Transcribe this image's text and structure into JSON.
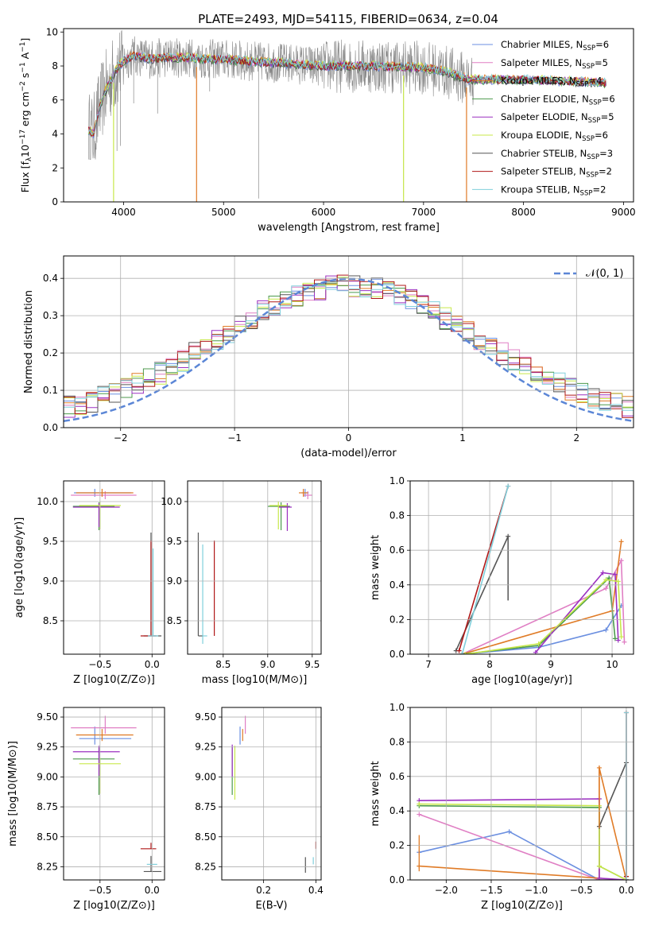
{
  "title": "PLATE=2493, MJD=54115, FIBERID=0634, z=0.04",
  "colors": {
    "chabrier_miles": "#6b8fe0",
    "salpeter_miles": "#e07fc4",
    "kroupa_miles": "#e07b26",
    "chabrier_elodie": "#4c9a4c",
    "salpeter_elodie": "#9b30c0",
    "kroupa_elodie": "#c8e84a",
    "chabrier_stelib": "#555555",
    "salpeter_stelib": "#b01818",
    "kroupa_stelib": "#80d0dc",
    "normal": "#5b86d6",
    "data": "#888888"
  },
  "chart_data": [
    {
      "type": "line",
      "panel": "spectrum",
      "xlabel": "wavelength [Angstrom, rest frame]",
      "ylabel": "Flux [f_λ 10^-17 erg cm^-2 s^-1 A^-1]",
      "xlim": [
        3400,
        9100
      ],
      "ylim": [
        0,
        10.2
      ],
      "xticks": [
        "4000",
        "5000",
        "6000",
        "7000",
        "8000",
        "9000"
      ],
      "yticks": [
        "0",
        "2",
        "4",
        "6",
        "8",
        "10"
      ],
      "legend_position": "right",
      "legend": [
        "Chabrier MILES, N_SSP=6",
        "Salpeter MILES, N_SSP=5",
        "Kroupa MILES, N_SSP=4",
        "Chabrier ELODIE, N_SSP=6",
        "Salpeter ELODIE, N_SSP=5",
        "Kroupa ELODIE, N_SSP=6",
        "Chabrier STELIB, N_SSP=3",
        "Salpeter STELIB, N_SSP=2",
        "Kroupa STELIB, N_SSP=2"
      ],
      "legend_base": [
        "Chabrier MILES, N",
        "Salpeter MILES, N",
        "Kroupa MILES, N",
        "Chabrier ELODIE, N",
        "Salpeter ELODIE, N",
        "Kroupa ELODIE, N",
        "Chabrier STELIB, N",
        "Salpeter STELIB, N",
        "Kroupa STELIB, N"
      ],
      "legend_sub": "SSP",
      "legend_n": [
        "=6",
        "=5",
        "=4",
        "=6",
        "=5",
        "=6",
        "=3",
        "=2",
        "=2"
      ],
      "continuum": {
        "x": [
          3650,
          3700,
          3750,
          3800,
          3850,
          3900,
          3950,
          4000,
          4100,
          4200,
          4300,
          4400,
          4500,
          4600,
          4800,
          5000,
          5200,
          5500,
          6000,
          6500,
          7000,
          7200,
          7400,
          7450,
          7500,
          8000,
          8500,
          8800
        ],
        "y": [
          4.2,
          4.0,
          5.3,
          6.3,
          6.9,
          7.5,
          8.0,
          8.3,
          8.6,
          8.5,
          8.4,
          8.5,
          8.5,
          8.5,
          8.4,
          8.4,
          8.3,
          8.2,
          8.0,
          8.0,
          7.9,
          7.7,
          7.3,
          7.2,
          7.2,
          7.2,
          7.1,
          7.0
        ]
      }
    },
    {
      "type": "bar",
      "panel": "residual_histograms",
      "xlabel": "(data-model)/error",
      "ylabel": "Normed distribution",
      "xlim": [
        -2.5,
        2.5
      ],
      "ylim": [
        0,
        0.46
      ],
      "xticks": [
        "−2",
        "−1",
        "0",
        "1",
        "2"
      ],
      "yticks": [
        "0.0",
        "0.1",
        "0.2",
        "0.3",
        "0.4"
      ],
      "normal_label": "𝒩(0, 1)",
      "legend_position": "top-right",
      "bin_width": 0.1
    },
    {
      "type": "scatter",
      "panel": "age_vs_Z",
      "xlabel": "Z [log10(Z/Z⊙)]",
      "ylabel": "age [log10(age/yr)]",
      "xlim": [
        -0.85,
        0.12
      ],
      "ylim": [
        8.08,
        10.26
      ],
      "xticks": [
        "−0.5",
        "0.0"
      ],
      "yticks": [
        "8.5",
        "9.0",
        "9.5",
        "10.0"
      ]
    },
    {
      "type": "scatter",
      "panel": "age_vs_mass",
      "xlabel": "mass [log10(M/M⊙)]",
      "ylabel": "",
      "xlim": [
        8.1,
        9.6
      ],
      "ylim": [
        8.08,
        10.26
      ],
      "xticks": [
        "8.5",
        "9.0",
        "9.5"
      ],
      "yticks": [
        "8.5",
        "9.0",
        "9.5",
        "10.0"
      ]
    },
    {
      "type": "line",
      "panel": "massweight_vs_age",
      "xlabel": "age [log10(age/yr)]",
      "ylabel": "mass weight",
      "xlim": [
        6.7,
        10.35
      ],
      "ylim": [
        0,
        1.0
      ],
      "xticks": [
        "7",
        "8",
        "9",
        "10"
      ],
      "yticks": [
        "0.0",
        "0.2",
        "0.4",
        "0.6",
        "0.8",
        "1.0"
      ]
    },
    {
      "type": "scatter",
      "panel": "mass_vs_Z",
      "xlabel": "Z [log10(Z/Z⊙)]",
      "ylabel": "mass [log10(M/M⊙)]",
      "xlim": [
        -0.85,
        0.12
      ],
      "ylim": [
        8.14,
        9.58
      ],
      "xticks": [
        "−0.5",
        "0.0"
      ],
      "yticks": [
        "8.25",
        "8.50",
        "8.75",
        "9.00",
        "9.25",
        "9.50"
      ]
    },
    {
      "type": "scatter",
      "panel": "mass_vs_ebv",
      "xlabel": "E(B-V)",
      "ylabel": "",
      "xlim": [
        0.04,
        0.42
      ],
      "ylim": [
        8.14,
        9.58
      ],
      "xticks": [
        "0.2",
        "0.4"
      ],
      "yticks": [
        "8.25",
        "8.50",
        "8.75",
        "9.00",
        "9.25",
        "9.50"
      ]
    },
    {
      "type": "line",
      "panel": "massweight_vs_Z",
      "xlabel": "Z [log10(Z/Z⊙)]",
      "ylabel": "mass weight",
      "xlim": [
        -2.4,
        0.08
      ],
      "ylim": [
        0,
        1.0
      ],
      "xticks": [
        "−2.0",
        "−1.5",
        "−1.0",
        "−0.5",
        "0.0"
      ],
      "yticks": [
        "0.0",
        "0.2",
        "0.4",
        "0.6",
        "0.8",
        "1.0"
      ]
    }
  ]
}
